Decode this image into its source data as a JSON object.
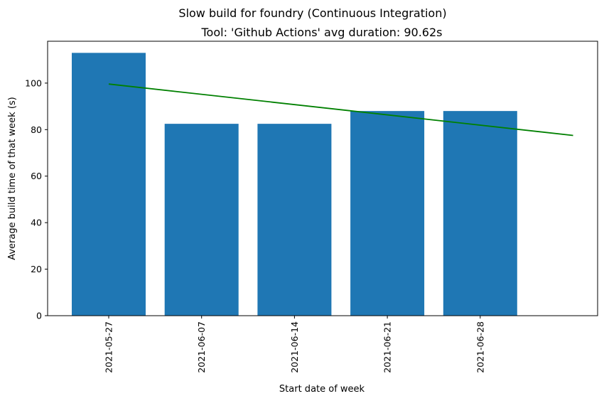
{
  "chart_data": {
    "type": "bar",
    "title": "Slow build for foundry (Continuous Integration)",
    "subtitle": "Tool: 'Github Actions' avg duration: 90.62s",
    "xlabel": "Start date of week",
    "ylabel": "Average build time of that week (s)",
    "categories": [
      "2021-05-27",
      "2021-06-07",
      "2021-06-14",
      "2021-06-21",
      "2021-06-28"
    ],
    "values": [
      113,
      82.5,
      82.5,
      88,
      88
    ],
    "ylim": [
      0,
      118
    ],
    "yticks": [
      0,
      20,
      40,
      60,
      80,
      100
    ],
    "bar_color": "#1f77b4",
    "trend_line": {
      "color": "#008000",
      "x_start_index": 0,
      "x_end_index": 5,
      "y_start": 99.6,
      "y_end": 77.5
    },
    "grid": false
  }
}
